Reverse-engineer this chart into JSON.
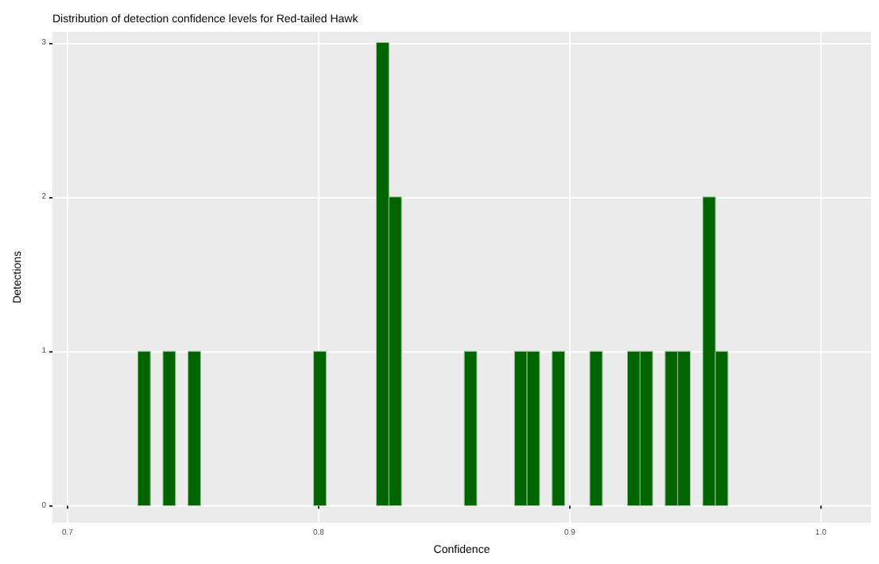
{
  "chart_data": {
    "type": "histogram",
    "title": "Distribution of detection confidence levels for Red-tailed Hawk",
    "xlabel": "Confidence",
    "ylabel": "Detections",
    "bins": [
      0.728,
      0.733,
      0.738,
      0.743,
      0.748,
      0.753,
      0.758,
      0.763,
      0.768,
      0.773,
      0.778,
      0.783,
      0.788,
      0.793,
      0.798,
      0.803,
      0.808,
      0.813,
      0.818,
      0.823,
      0.828,
      0.833,
      0.838,
      0.843,
      0.848,
      0.853,
      0.858,
      0.863,
      0.868,
      0.873,
      0.878,
      0.883,
      0.888,
      0.893,
      0.898,
      0.903,
      0.908,
      0.913,
      0.918,
      0.923,
      0.928,
      0.933,
      0.938,
      0.943,
      0.948,
      0.953,
      0.958,
      0.963
    ],
    "values": [
      1,
      0,
      1,
      0,
      1,
      0,
      0,
      0,
      0,
      0,
      0,
      0,
      0,
      0,
      1,
      0,
      0,
      0,
      0,
      3,
      2,
      0,
      0,
      0,
      0,
      0,
      1,
      0,
      0,
      0,
      1,
      1,
      0,
      1,
      0,
      0,
      1,
      0,
      0,
      1,
      1,
      0,
      1,
      1,
      0,
      2,
      1
    ],
    "color": "#006400",
    "xlim": [
      0.694,
      1.02
    ],
    "xticks": [
      0.7,
      0.8,
      0.9,
      {
        "value": 1.0,
        "label": "1.0"
      }
    ],
    "ylim": [
      -0.11,
      3.07
    ],
    "yticks": [
      0,
      1,
      2,
      3
    ],
    "grid": true
  }
}
